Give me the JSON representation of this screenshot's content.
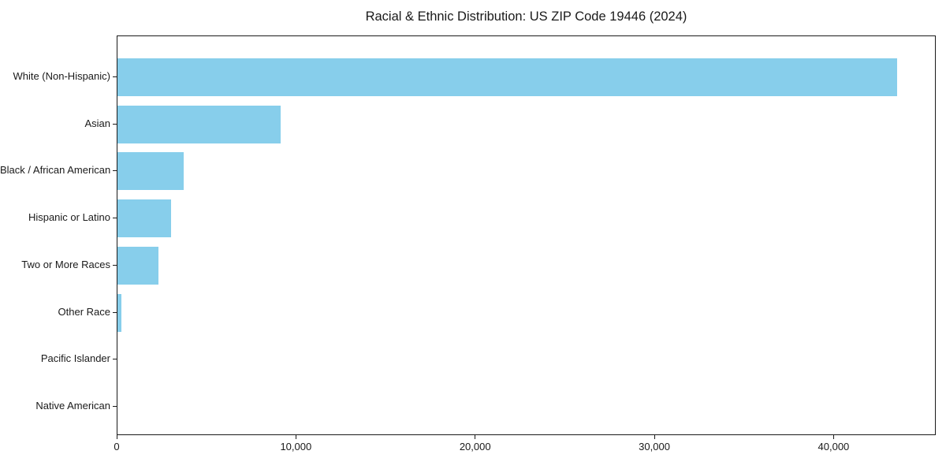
{
  "chart_data": {
    "type": "bar",
    "orientation": "horizontal",
    "title": "Racial & Ethnic Distribution: US ZIP Code 19446 (2024)",
    "categories": [
      "White (Non-Hispanic)",
      "Asian",
      "Black / African American",
      "Hispanic or Latino",
      "Two or More Races",
      "Other Race",
      "Pacific Islander",
      "Native American"
    ],
    "values": [
      43500,
      9100,
      3700,
      3000,
      2300,
      200,
      0,
      0
    ],
    "xlabel": "",
    "ylabel": "",
    "xlim": [
      0,
      45700
    ],
    "x_ticks": [
      0,
      10000,
      20000,
      30000,
      40000
    ],
    "x_tick_labels": [
      "0",
      "10,000",
      "20,000",
      "30,000",
      "40,000"
    ],
    "bar_color": "#87CEEB",
    "text_color": "#1a1a1a",
    "spine_color": "#1a1a1a",
    "grid": false,
    "legend": false
  }
}
